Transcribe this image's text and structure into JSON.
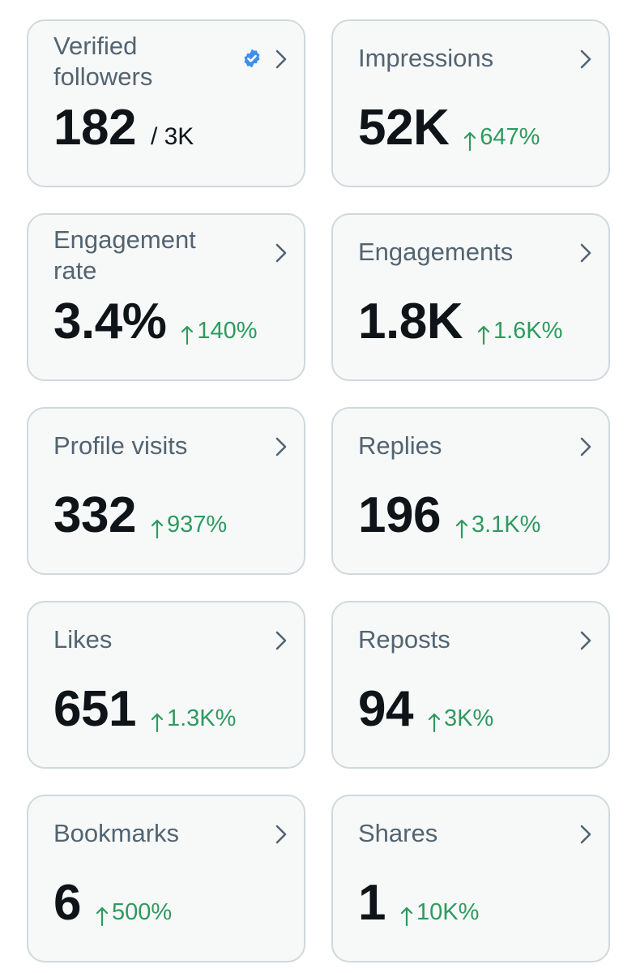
{
  "colors": {
    "card_bg": "#f7f9f9",
    "card_border": "#cfd9de",
    "label": "#536471",
    "value": "#0f1419",
    "positive": "#2e9a5e",
    "verified": "#3f8fe8"
  },
  "cards": [
    {
      "title": "Verified\nfollowers",
      "value": "182",
      "suffix": "/ 3K",
      "delta": "",
      "icon": "verified-badge-icon"
    },
    {
      "title": "Impressions",
      "value": "52K",
      "suffix": "",
      "delta": "647%"
    },
    {
      "title": "Engagement\nrate",
      "value": "3.4%",
      "suffix": "",
      "delta": "140%"
    },
    {
      "title": "Engagements",
      "value": "1.8K",
      "suffix": "",
      "delta": "1.6K%"
    },
    {
      "title": "Profile visits",
      "value": "332",
      "suffix": "",
      "delta": "937%"
    },
    {
      "title": "Replies",
      "value": "196",
      "suffix": "",
      "delta": "3.1K%"
    },
    {
      "title": "Likes",
      "value": "651",
      "suffix": "",
      "delta": "1.3K%"
    },
    {
      "title": "Reposts",
      "value": "94",
      "suffix": "",
      "delta": "3K%"
    },
    {
      "title": "Bookmarks",
      "value": "6",
      "suffix": "",
      "delta": "500%"
    },
    {
      "title": "Shares",
      "value": "1",
      "suffix": "",
      "delta": "10K%"
    }
  ]
}
